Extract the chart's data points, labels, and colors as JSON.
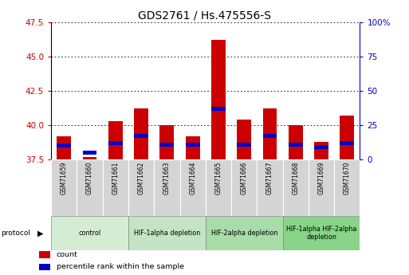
{
  "title": "GDS2761 / Hs.475556-S",
  "samples": [
    "GSM71659",
    "GSM71660",
    "GSM71661",
    "GSM71662",
    "GSM71663",
    "GSM71664",
    "GSM71665",
    "GSM71666",
    "GSM71667",
    "GSM71668",
    "GSM71669",
    "GSM71670"
  ],
  "count_values": [
    39.2,
    37.7,
    40.3,
    41.2,
    40.0,
    39.2,
    46.2,
    40.4,
    41.2,
    40.0,
    38.8,
    40.7
  ],
  "percentile_values": [
    38.5,
    38.0,
    38.7,
    39.2,
    38.6,
    38.6,
    41.2,
    38.6,
    39.2,
    38.6,
    38.4,
    38.7
  ],
  "y_min": 37.5,
  "y_max": 47.5,
  "y_ticks": [
    37.5,
    40.0,
    42.5,
    45.0,
    47.5
  ],
  "y2_ticks": [
    0,
    25,
    50,
    75,
    100
  ],
  "y2_tick_labels": [
    "0",
    "25",
    "50",
    "75",
    "100%"
  ],
  "bar_color": "#cc0000",
  "percentile_color": "#0000cc",
  "protocols": [
    {
      "label": "control",
      "indices": [
        0,
        1,
        2
      ],
      "color": "#d4ecd4"
    },
    {
      "label": "HIF-1alpha depletion",
      "indices": [
        3,
        4,
        5
      ],
      "color": "#c4e4c4"
    },
    {
      "label": "HIF-2alpha depletion",
      "indices": [
        6,
        7,
        8
      ],
      "color": "#a8dca8"
    },
    {
      "label": "HIF-1alpha HIF-2alpha\ndepletion",
      "indices": [
        9,
        10,
        11
      ],
      "color": "#88d488"
    }
  ],
  "legend_items": [
    {
      "label": "count",
      "color": "#cc0000"
    },
    {
      "label": "percentile rank within the sample",
      "color": "#0000cc"
    }
  ],
  "tick_label_color_left": "#cc0000",
  "tick_label_color_right": "#0000cc",
  "title_fontsize": 10,
  "bar_width": 0.55,
  "percentile_bar_height": 0.28,
  "protocol_label": "protocol",
  "label_bg_color": "#d4d4d4"
}
